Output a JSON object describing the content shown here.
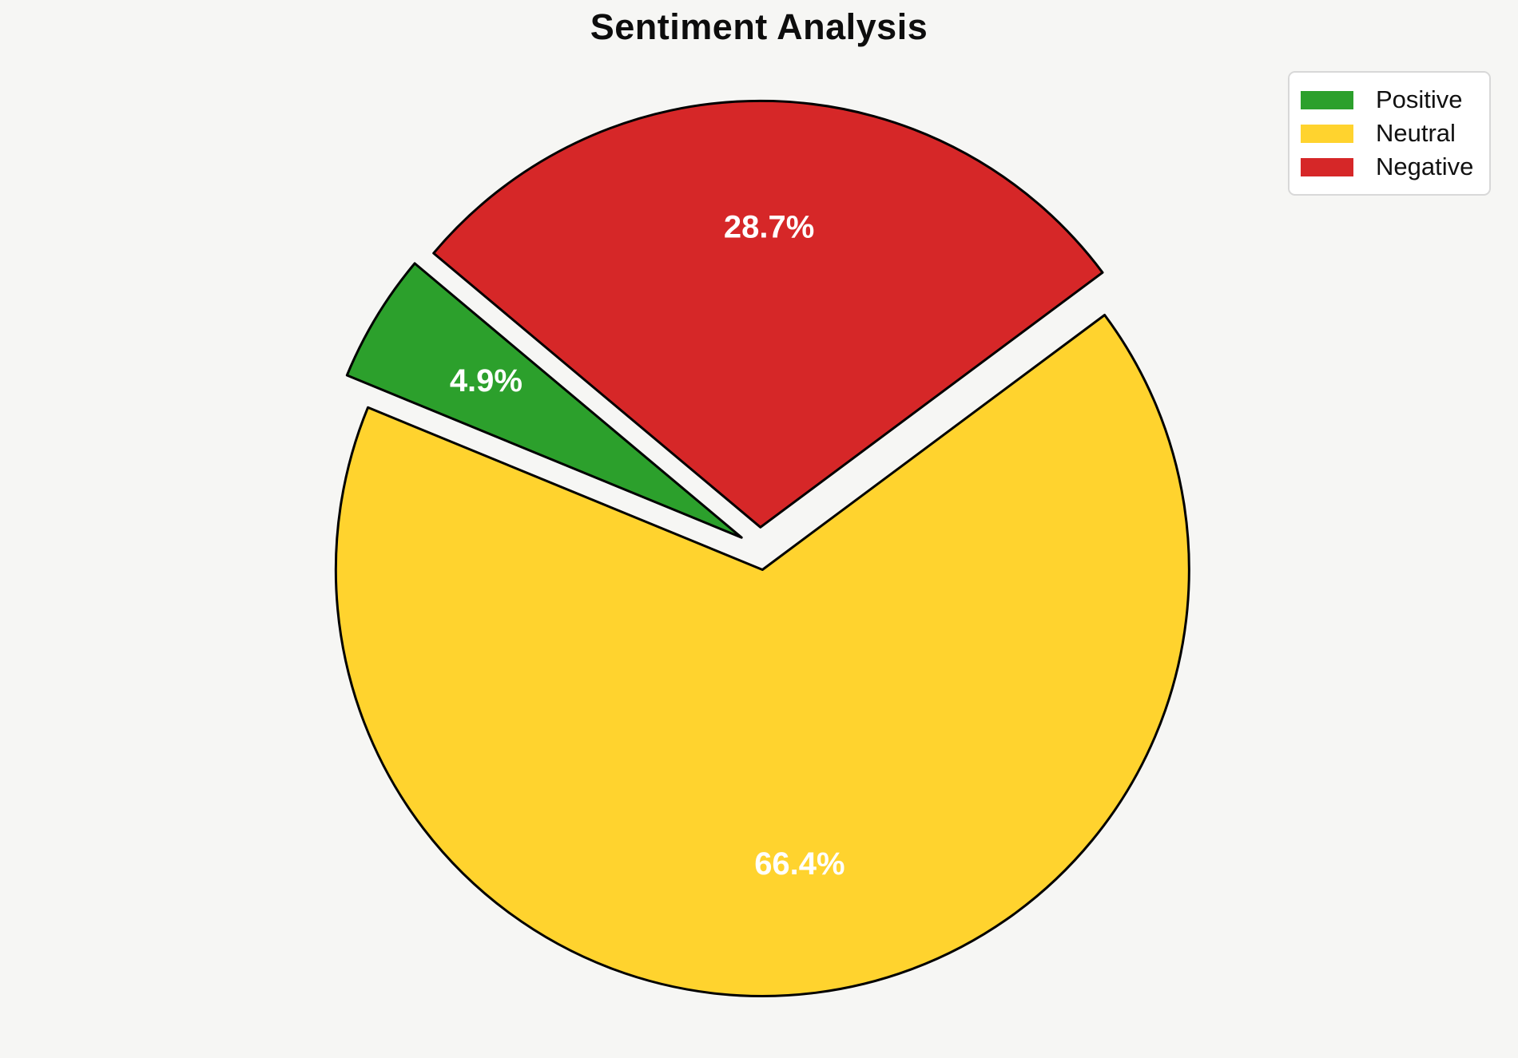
{
  "chart_data": {
    "type": "pie",
    "title": "Sentiment Analysis",
    "labels": [
      "Positive",
      "Neutral",
      "Negative"
    ],
    "values": [
      4.9,
      66.4,
      28.7
    ],
    "slice_labels": [
      "4.9%",
      "66.4%",
      "28.7%"
    ],
    "colors": [
      "#2CA02C",
      "#FFD32E",
      "#D62728"
    ],
    "edge_color": "#000000",
    "edge_width": 3,
    "startangle": 140,
    "counterclock": true,
    "explode": [
      0.05,
      0.05,
      0.05
    ],
    "pctdistance": 0.7,
    "label_color": "#FFFFFF",
    "background": "#F6F6F4",
    "legend_position": "upper right",
    "legend_items": [
      "Positive",
      "Neutral",
      "Negative"
    ]
  }
}
